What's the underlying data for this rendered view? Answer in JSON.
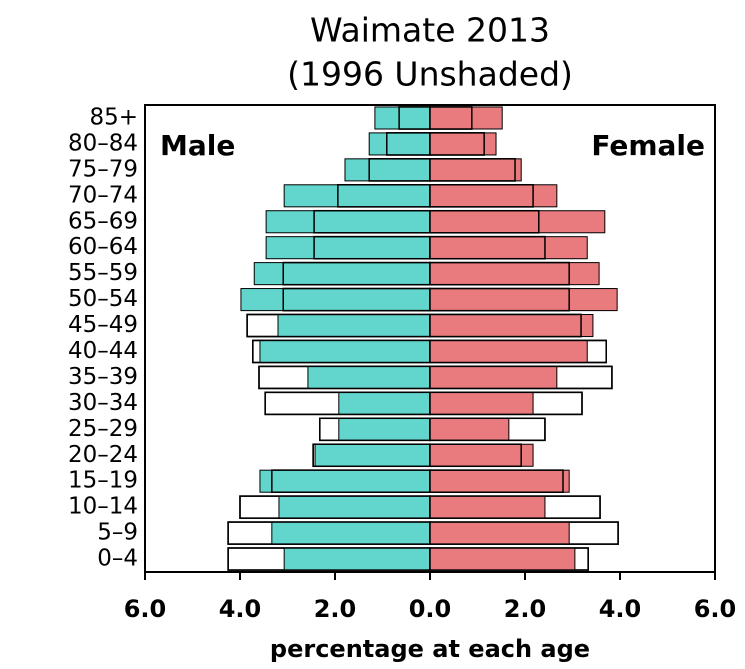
{
  "chart_data": {
    "type": "pyramid",
    "title": "Waimate 2013",
    "subtitle": "(1996 Unshaded)",
    "x_label": "percentage at each age",
    "categories": [
      "0–4",
      "5–9",
      "10–14",
      "15–19",
      "20–24",
      "25–29",
      "30–34",
      "35–39",
      "40–44",
      "45–49",
      "50–54",
      "55–59",
      "60–64",
      "65–69",
      "70–74",
      "75–79",
      "80–84",
      "85+"
    ],
    "series": [
      {
        "name": "Male",
        "color": "#62d6cd",
        "values": [
          3.07,
          3.33,
          3.18,
          3.58,
          2.42,
          1.92,
          1.92,
          2.57,
          3.58,
          3.2,
          3.98,
          3.7,
          3.45,
          3.45,
          3.07,
          1.79,
          1.28,
          1.16
        ],
        "values_1996": [
          4.25,
          4.25,
          4.0,
          3.33,
          2.46,
          2.32,
          3.47,
          3.6,
          3.73,
          3.85,
          3.09,
          3.09,
          2.44,
          2.44,
          1.94,
          1.28,
          0.91,
          0.65
        ]
      },
      {
        "name": "Female",
        "color": "#e97a7e",
        "values": [
          3.05,
          2.93,
          2.42,
          2.93,
          2.17,
          1.66,
          2.17,
          2.67,
          3.31,
          3.43,
          3.94,
          3.56,
          3.31,
          3.68,
          2.67,
          1.92,
          1.39,
          1.52
        ],
        "values_1996": [
          3.33,
          3.96,
          3.58,
          2.8,
          1.92,
          2.42,
          3.2,
          3.83,
          3.71,
          3.18,
          2.93,
          2.93,
          2.42,
          2.29,
          2.17,
          1.79,
          1.14,
          0.88
        ]
      }
    ],
    "xlim": [
      -6,
      6
    ],
    "xticks": [
      {
        "value": -6,
        "label": "6.0"
      },
      {
        "value": -4,
        "label": "4.0"
      },
      {
        "value": -2,
        "label": "2.0"
      },
      {
        "value": 0,
        "label": "0.0"
      },
      {
        "value": 2,
        "label": "2.0"
      },
      {
        "value": 4,
        "label": "4.0"
      },
      {
        "value": 6,
        "label": "6.0"
      }
    ]
  }
}
